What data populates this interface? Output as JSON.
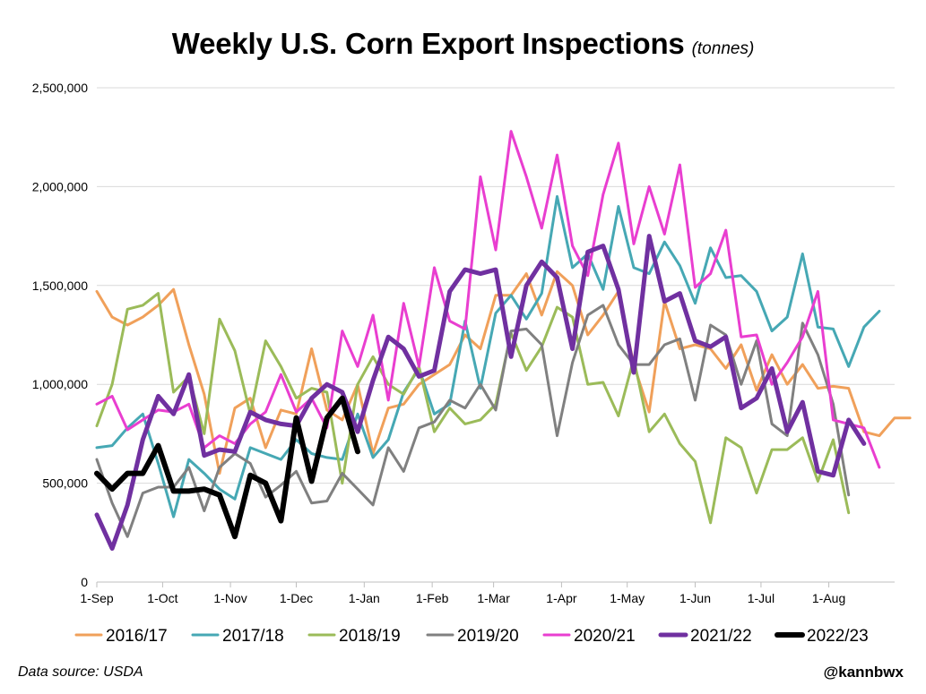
{
  "chart_data": {
    "type": "line",
    "title": "Weekly U.S. Corn Export Inspections",
    "subtitle": "(tonnes)",
    "xlabel": "",
    "ylabel": "",
    "ylim": [
      0,
      2500000
    ],
    "y_ticks": [
      0,
      500000,
      1000000,
      1500000,
      2000000,
      2500000
    ],
    "y_tick_labels": [
      "0",
      "500,000",
      "1,000,000",
      "1,500,000",
      "2,000,000",
      "2,500,000"
    ],
    "x_tick_weeks": [
      0,
      4.29,
      8.71,
      13.0,
      17.43,
      21.86,
      25.86,
      30.29,
      34.57,
      39.0,
      43.29,
      47.71
    ],
    "x_tick_labels": [
      "1-Sep",
      "1-Oct",
      "1-Nov",
      "1-Dec",
      "1-Jan",
      "1-Feb",
      "1-Mar",
      "1-Apr",
      "1-May",
      "1-Jun",
      "1-Jul",
      "1-Aug"
    ],
    "x_range_weeks": [
      0,
      52
    ],
    "grid": "horizontal",
    "legend_position": "bottom",
    "series": [
      {
        "name": "2016/17",
        "color": "#f0a05a",
        "width": 3,
        "values": [
          1470000,
          1340000,
          1300000,
          1340000,
          1400000,
          1480000,
          1200000,
          950000,
          550000,
          880000,
          930000,
          680000,
          870000,
          850000,
          1180000,
          870000,
          820000,
          1000000,
          650000,
          880000,
          900000,
          1000000,
          1050000,
          1100000,
          1250000,
          1180000,
          1450000,
          1450000,
          1560000,
          1350000,
          1570000,
          1500000,
          1250000,
          1350000,
          1470000,
          1100000,
          860000,
          1420000,
          1180000,
          1200000,
          1180000,
          1080000,
          1200000,
          970000,
          1150000,
          1000000,
          1100000,
          980000,
          990000,
          980000,
          760000,
          740000,
          830000,
          830000
        ]
      },
      {
        "name": "2017/18",
        "color": "#46a8b4",
        "width": 3,
        "values": [
          680000,
          690000,
          780000,
          850000,
          600000,
          330000,
          620000,
          550000,
          470000,
          420000,
          680000,
          650000,
          620000,
          720000,
          650000,
          630000,
          620000,
          850000,
          630000,
          720000,
          960000,
          1080000,
          850000,
          900000,
          1320000,
          980000,
          1360000,
          1450000,
          1330000,
          1460000,
          1950000,
          1590000,
          1660000,
          1480000,
          1900000,
          1590000,
          1560000,
          1720000,
          1600000,
          1410000,
          1690000,
          1540000,
          1550000,
          1470000,
          1270000,
          1340000,
          1660000,
          1290000,
          1280000,
          1090000,
          1290000,
          1370000
        ]
      },
      {
        "name": "2018/19",
        "color": "#9bbb59",
        "width": 3,
        "values": [
          790000,
          1000000,
          1380000,
          1400000,
          1460000,
          960000,
          1040000,
          750000,
          1330000,
          1170000,
          850000,
          1220000,
          1090000,
          930000,
          980000,
          960000,
          500000,
          1000000,
          1140000,
          1000000,
          950000,
          1090000,
          760000,
          880000,
          800000,
          820000,
          900000,
          1260000,
          1070000,
          1190000,
          1390000,
          1340000,
          1000000,
          1010000,
          840000,
          1130000,
          760000,
          850000,
          700000,
          610000,
          300000,
          730000,
          680000,
          450000,
          670000,
          670000,
          730000,
          510000,
          720000,
          350000
        ]
      },
      {
        "name": "2019/20",
        "color": "#808080",
        "width": 3,
        "values": [
          620000,
          400000,
          230000,
          450000,
          480000,
          480000,
          580000,
          360000,
          580000,
          650000,
          600000,
          430000,
          490000,
          560000,
          400000,
          410000,
          550000,
          470000,
          390000,
          680000,
          560000,
          780000,
          810000,
          920000,
          880000,
          1000000,
          870000,
          1270000,
          1280000,
          1200000,
          740000,
          1110000,
          1350000,
          1400000,
          1200000,
          1100000,
          1100000,
          1200000,
          1230000,
          920000,
          1300000,
          1250000,
          1000000,
          1220000,
          800000,
          740000,
          1310000,
          1150000,
          900000,
          440000
        ]
      },
      {
        "name": "2020/21",
        "color": "#e93ed0",
        "width": 3,
        "values": [
          900000,
          940000,
          770000,
          820000,
          870000,
          860000,
          900000,
          680000,
          740000,
          700000,
          800000,
          860000,
          1050000,
          860000,
          930000,
          780000,
          1270000,
          1090000,
          1350000,
          920000,
          1410000,
          1090000,
          1590000,
          1320000,
          1280000,
          2050000,
          1680000,
          2280000,
          2050000,
          1790000,
          2160000,
          1700000,
          1550000,
          1960000,
          2220000,
          1710000,
          2000000,
          1760000,
          2110000,
          1490000,
          1560000,
          1780000,
          1240000,
          1250000,
          1000000,
          1110000,
          1240000,
          1470000,
          820000,
          800000,
          780000,
          580000
        ]
      },
      {
        "name": "2021/22",
        "color": "#7030a0",
        "width": 5,
        "values": [
          340000,
          170000,
          390000,
          720000,
          940000,
          850000,
          1050000,
          640000,
          670000,
          660000,
          860000,
          820000,
          800000,
          790000,
          930000,
          1000000,
          960000,
          760000,
          1020000,
          1240000,
          1180000,
          1040000,
          1070000,
          1470000,
          1580000,
          1560000,
          1580000,
          1140000,
          1500000,
          1620000,
          1540000,
          1180000,
          1670000,
          1700000,
          1480000,
          1060000,
          1750000,
          1420000,
          1460000,
          1220000,
          1190000,
          1240000,
          880000,
          930000,
          1080000,
          760000,
          910000,
          560000,
          540000,
          820000,
          700000
        ]
      },
      {
        "name": "2022/23",
        "color": "#000000",
        "width": 6,
        "values": [
          550000,
          470000,
          550000,
          550000,
          690000,
          460000,
          460000,
          470000,
          440000,
          230000,
          540000,
          500000,
          310000,
          830000,
          510000,
          830000,
          930000,
          660000
        ]
      }
    ]
  },
  "footer": {
    "source": "Data source: USDA",
    "handle": "@kannbwx"
  }
}
